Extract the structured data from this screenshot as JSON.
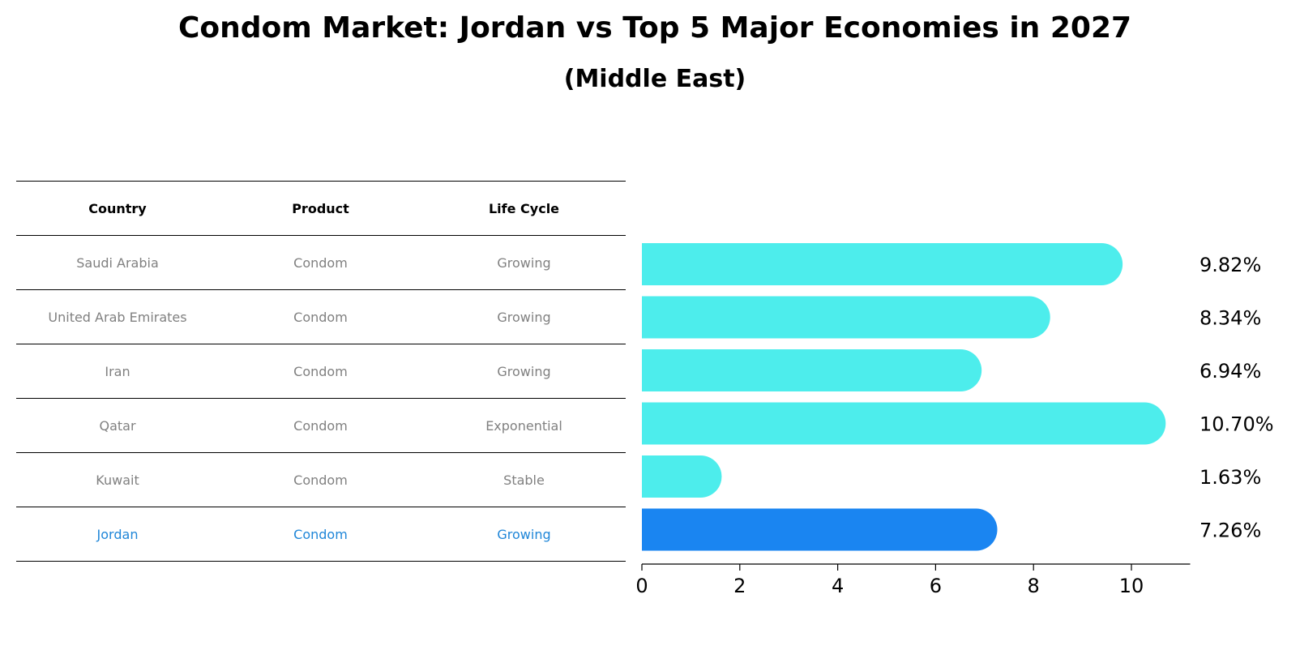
{
  "header": {
    "title": "Condom Market: Jordan vs Top 5 Major Economies in 2027",
    "subtitle": "(Middle East)"
  },
  "table": {
    "columns": [
      "Country",
      "Product",
      "Life Cycle"
    ],
    "rows": [
      {
        "country": "Saudi Arabia",
        "product": "Condom",
        "life_cycle": "Growing"
      },
      {
        "country": "United Arab Emirates",
        "product": "Condom",
        "life_cycle": "Growing"
      },
      {
        "country": "Iran",
        "product": "Condom",
        "life_cycle": "Growing"
      },
      {
        "country": "Qatar",
        "product": "Condom",
        "life_cycle": "Exponential"
      },
      {
        "country": "Kuwait",
        "product": "Condom",
        "life_cycle": "Stable"
      },
      {
        "country": "Jordan",
        "product": "Condom",
        "life_cycle": "Growing"
      }
    ],
    "highlight_row": "Jordan"
  },
  "colors": {
    "bar": "#4DEDEC",
    "highlight_bar": "#1A85F1",
    "row_text": "#808080",
    "highlight_text": "#1F86D8"
  },
  "chart_data": {
    "type": "bar",
    "orientation": "horizontal",
    "title": "Condom Market: Jordan vs Top 5 Major Economies in 2027",
    "subtitle": "(Middle East)",
    "categories": [
      "Saudi Arabia",
      "United Arab Emirates",
      "Iran",
      "Qatar",
      "Kuwait",
      "Jordan"
    ],
    "values": [
      9.82,
      8.34,
      6.94,
      10.7,
      1.63,
      7.26
    ],
    "value_labels": [
      "9.82%",
      "8.34%",
      "6.94%",
      "10.70%",
      "1.63%",
      "7.26%"
    ],
    "xlabel": "",
    "ylabel": "",
    "xlim": [
      0,
      11.2
    ],
    "xticks": [
      0,
      2,
      4,
      6,
      8,
      10
    ],
    "grid": false,
    "highlight": "Jordan"
  }
}
